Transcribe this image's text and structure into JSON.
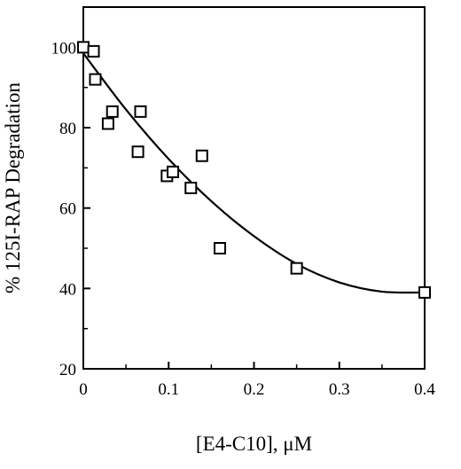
{
  "chart_data": {
    "type": "scatter",
    "xlabel": "[E4-C10], μM",
    "ylabel": "% 125I-RAP Degradation",
    "xlim": [
      0,
      0.4
    ],
    "ylim": [
      20,
      110
    ],
    "x_ticks": [
      "0",
      "0.1",
      "0.2",
      "0.3",
      "0.4"
    ],
    "y_ticks": [
      "20",
      "40",
      "60",
      "80",
      "100"
    ],
    "grid": false,
    "marker": "open-square",
    "series": [
      {
        "points": [
          {
            "x": 0.0,
            "y": 100
          },
          {
            "x": 0.012,
            "y": 99
          },
          {
            "x": 0.014,
            "y": 92
          },
          {
            "x": 0.029,
            "y": 81
          },
          {
            "x": 0.034,
            "y": 84
          },
          {
            "x": 0.064,
            "y": 74
          },
          {
            "x": 0.067,
            "y": 84
          },
          {
            "x": 0.098,
            "y": 68
          },
          {
            "x": 0.105,
            "y": 69
          },
          {
            "x": 0.126,
            "y": 65
          },
          {
            "x": 0.139,
            "y": 73
          },
          {
            "x": 0.16,
            "y": 50
          },
          {
            "x": 0.25,
            "y": 45
          },
          {
            "x": 0.4,
            "y": 39
          }
        ]
      }
    ],
    "fit_curve": {
      "type": "quadratic",
      "points": [
        {
          "x": 0.0,
          "y": 98.5
        },
        {
          "x": 0.05,
          "y": 84.5
        },
        {
          "x": 0.1,
          "y": 72.2
        },
        {
          "x": 0.15,
          "y": 61.7
        },
        {
          "x": 0.2,
          "y": 53.0
        },
        {
          "x": 0.25,
          "y": 46.1
        },
        {
          "x": 0.3,
          "y": 41.5
        },
        {
          "x": 0.35,
          "y": 39.2
        },
        {
          "x": 0.4,
          "y": 39.0
        }
      ]
    }
  }
}
